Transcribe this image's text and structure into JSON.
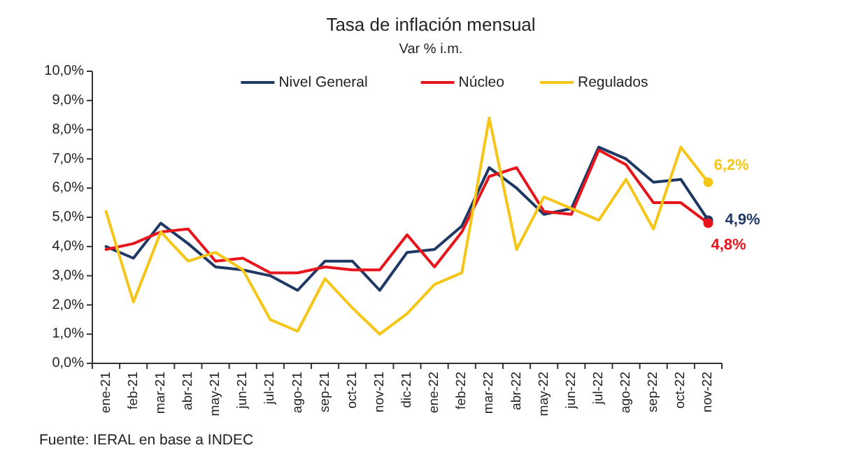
{
  "chart_data": {
    "type": "line",
    "title": "Tasa de inflación mensual",
    "subtitle": "Var % i.m.",
    "categories": [
      "ene-21",
      "feb-21",
      "mar-21",
      "abr-21",
      "may-21",
      "jun-21",
      "jul-21",
      "ago-21",
      "sep-21",
      "oct-21",
      "nov-21",
      "dic-21",
      "ene-22",
      "feb-22",
      "mar-22",
      "abr-22",
      "may-22",
      "jun-22",
      "jul-22",
      "ago-22",
      "sep-22",
      "oct-22",
      "nov-22"
    ],
    "series": [
      {
        "name": "Nivel General",
        "color": "#1f3864",
        "values": [
          4.0,
          3.6,
          4.8,
          4.1,
          3.3,
          3.2,
          3.0,
          2.5,
          3.5,
          3.5,
          2.5,
          3.8,
          3.9,
          4.7,
          6.7,
          6.0,
          5.1,
          5.3,
          7.4,
          7.0,
          6.2,
          6.3,
          4.9
        ],
        "value_labels": [
          null,
          null,
          null,
          null,
          null,
          null,
          null,
          null,
          null,
          null,
          null,
          null,
          null,
          null,
          null,
          null,
          null,
          null,
          null,
          null,
          null,
          null,
          "4,9%"
        ]
      },
      {
        "name": "Núcleo",
        "color": "#e8141b",
        "values": [
          3.9,
          4.1,
          4.5,
          4.6,
          3.5,
          3.6,
          3.1,
          3.1,
          3.3,
          3.2,
          3.2,
          4.4,
          3.3,
          4.5,
          6.4,
          6.7,
          5.2,
          5.1,
          7.3,
          6.8,
          5.5,
          5.5,
          4.8
        ],
        "value_labels": [
          null,
          null,
          null,
          null,
          null,
          null,
          null,
          null,
          null,
          null,
          null,
          null,
          null,
          null,
          null,
          null,
          null,
          null,
          null,
          null,
          null,
          null,
          "4,8%"
        ]
      },
      {
        "name": "Regulados",
        "color": "#f5c518",
        "values": [
          5.2,
          2.1,
          4.5,
          3.5,
          3.8,
          3.2,
          1.5,
          1.1,
          2.9,
          1.9,
          1.0,
          1.7,
          2.7,
          3.1,
          8.4,
          3.9,
          5.7,
          5.3,
          4.9,
          6.3,
          4.6,
          7.4,
          6.2
        ],
        "value_labels": [
          null,
          null,
          null,
          null,
          null,
          null,
          null,
          null,
          null,
          null,
          null,
          null,
          null,
          null,
          null,
          null,
          null,
          null,
          null,
          null,
          null,
          null,
          "6,2%"
        ]
      }
    ],
    "ylim": [
      0,
      10
    ],
    "yticks": [
      {
        "value": 0,
        "label": "0,0%"
      },
      {
        "value": 1,
        "label": "1,0%"
      },
      {
        "value": 2,
        "label": "2,0%"
      },
      {
        "value": 3,
        "label": "3,0%"
      },
      {
        "value": 4,
        "label": "4,0%"
      },
      {
        "value": 5,
        "label": "5,0%"
      },
      {
        "value": 6,
        "label": "6,0%"
      },
      {
        "value": 7,
        "label": "7,0%"
      },
      {
        "value": 8,
        "label": "8,0%"
      },
      {
        "value": 9,
        "label": "9,0%"
      },
      {
        "value": 10,
        "label": "10,0%"
      }
    ],
    "legend": "top",
    "grid": false,
    "annotations": [
      "Fuente: IERAL en base a INDEC"
    ]
  }
}
